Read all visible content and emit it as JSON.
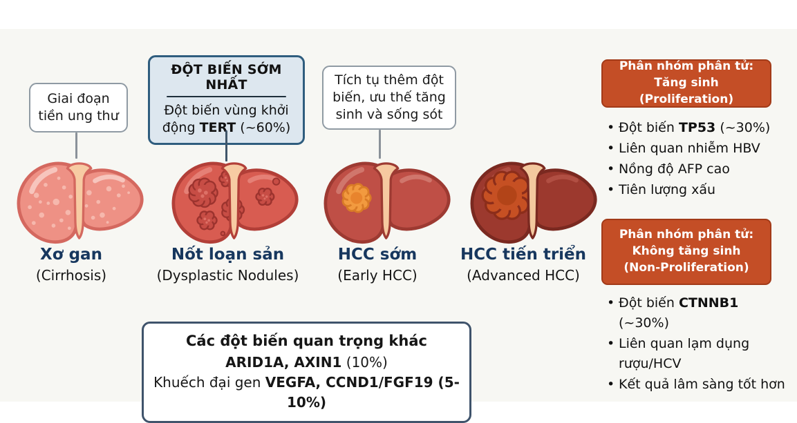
{
  "canvas": {
    "background": "#ffffff",
    "band_background": "#f7f7f3"
  },
  "colors": {
    "stage_title_navy": "#17375e",
    "panel_header_bg": "#c44e26",
    "panel_header_border": "#a23a18",
    "blue_box_bg": "#dde7ef",
    "blue_box_border": "#2f5d7e",
    "gray_box_border": "#8f9aa3",
    "bottom_box_border": "#3f536b"
  },
  "callouts": {
    "precancer": {
      "text": "Giai đoạn tiền ung thư"
    },
    "earliest_mutation": {
      "title": "ĐỘT BIẾN SỚM NHẤT",
      "body": [
        {
          "t": "Đột biến vùng khởi",
          "b": false
        },
        {
          "t": "\n",
          "b": false
        },
        {
          "t": "động ",
          "b": false
        },
        {
          "t": "TERT",
          "b": true
        },
        {
          "t": " (~60%)",
          "b": false
        }
      ]
    },
    "accumulation": {
      "text": "Tích tụ thêm đột biến, ưu thế tăng sinh và sống sót"
    }
  },
  "stages": [
    {
      "title": "Xơ gan",
      "subtitle": "(Cirrhosis)",
      "art": {
        "deco": "spots",
        "base": "#ee9185",
        "outline": "#d4685f",
        "ligament": "#f7cba3",
        "highlight": "#f9d2ca",
        "spot": "#f6bcb1"
      }
    },
    {
      "title": "Nốt loạn sản",
      "subtitle": "(Dysplastic Nodules)",
      "art": {
        "deco": "nodules",
        "base": "#d85c51",
        "outline": "#b23f38",
        "ligament": "#f7cba3",
        "highlight": "#e88a80",
        "nodule": "#c74d45",
        "nodule_stroke": "#9c332e",
        "nodule_dot": "#dd7066"
      }
    },
    {
      "title": "HCC sớm",
      "subtitle": "(Early HCC)",
      "art": {
        "deco": "small-tumor",
        "base": "#bf4f46",
        "outline": "#9d3a32",
        "ligament": "#f6c9a0",
        "highlight": "#d47f76",
        "tumor": "#f29a3f",
        "tumor_stroke": "#d97b27",
        "tumor_inner": "#e8842d"
      }
    },
    {
      "title": "HCC tiến triển",
      "subtitle": "(Advanced HCC)",
      "art": {
        "deco": "large-tumor",
        "base": "#9c392e",
        "outline": "#7a2920",
        "ligament": "#f3c89e",
        "highlight": "#b75548",
        "tumor": "#c65023",
        "tumor_stroke": "#8c2d1a",
        "tumor_inner": "#b24418"
      }
    }
  ],
  "panels": [
    {
      "header_lines": [
        "Phân nhóm phân tử:",
        "Tăng sinh (Proliferation)"
      ],
      "bullets": [
        [
          {
            "t": "Đột biến ",
            "b": false
          },
          {
            "t": "TP53",
            "b": true
          },
          {
            "t": " (~30%)",
            "b": false
          }
        ],
        [
          {
            "t": "Liên quan nhiễm HBV",
            "b": false
          }
        ],
        [
          {
            "t": "Nồng độ AFP cao",
            "b": false
          }
        ],
        [
          {
            "t": "Tiên lượng xấu",
            "b": false
          }
        ]
      ]
    },
    {
      "header_lines": [
        "Phân nhóm phân tử:",
        "Không tăng sinh",
        "(Non-Proliferation)"
      ],
      "bullets": [
        [
          {
            "t": "Đột biến ",
            "b": false
          },
          {
            "t": "CTNNB1",
            "b": true
          },
          {
            "t": " (~30%)",
            "b": false
          }
        ],
        [
          {
            "t": "Liên quan lạm dụng rượu/HCV",
            "b": false
          }
        ],
        [
          {
            "t": "Kết quả lâm sàng tốt hơn",
            "b": false
          }
        ]
      ]
    }
  ],
  "other_mutations": {
    "lines": [
      [
        {
          "t": "Các đột biến quan trọng khác",
          "b": true
        }
      ],
      [
        {
          "t": "ARID1A, AXIN1",
          "b": true
        },
        {
          "t": " (10%)",
          "b": false
        }
      ],
      [
        {
          "t": "Khuếch đại gen ",
          "b": false
        },
        {
          "t": "VEGFA, CCND1/FGF19 (5-10%)",
          "b": true
        }
      ]
    ]
  }
}
